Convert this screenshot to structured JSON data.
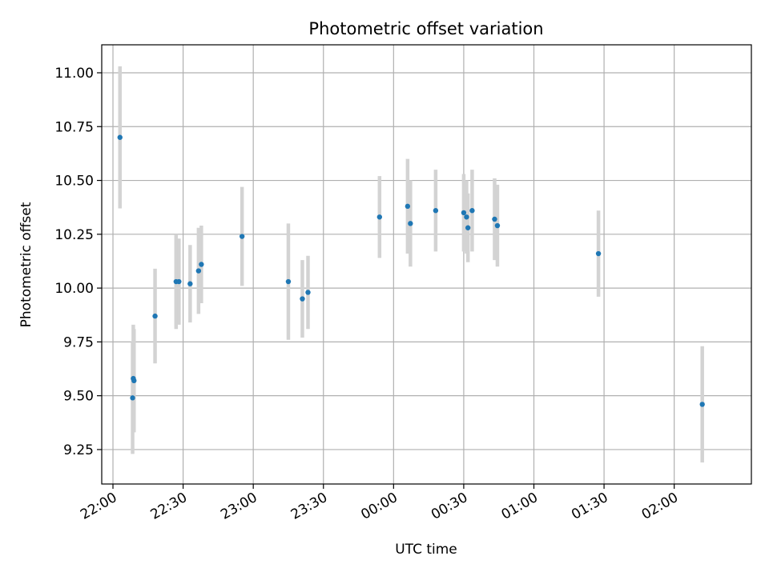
{
  "chart_data": {
    "type": "scatter",
    "title": "Photometric offset variation",
    "xlabel": "UTC time",
    "ylabel": "Photometric offset",
    "x_unit": "UTC time of day (hours after midnight of first date; values >= 24 are next day)",
    "xlim": [
      21.92,
      26.55
    ],
    "ylim": [
      9.09,
      11.13
    ],
    "grid": true,
    "x_ticks": [
      {
        "value": 22.0,
        "label": "22:00"
      },
      {
        "value": 22.5,
        "label": "22:30"
      },
      {
        "value": 23.0,
        "label": "23:00"
      },
      {
        "value": 23.5,
        "label": "23:30"
      },
      {
        "value": 24.0,
        "label": "00:00"
      },
      {
        "value": 24.5,
        "label": "00:30"
      },
      {
        "value": 25.0,
        "label": "01:00"
      },
      {
        "value": 25.5,
        "label": "01:30"
      },
      {
        "value": 26.0,
        "label": "02:00"
      }
    ],
    "y_ticks": [
      {
        "value": 9.25,
        "label": "9.25"
      },
      {
        "value": 9.5,
        "label": "9.50"
      },
      {
        "value": 9.75,
        "label": "9.75"
      },
      {
        "value": 10.0,
        "label": "10.00"
      },
      {
        "value": 10.25,
        "label": "10.25"
      },
      {
        "value": 10.5,
        "label": "10.50"
      },
      {
        "value": 10.75,
        "label": "10.75"
      },
      {
        "value": 11.0,
        "label": "11.00"
      }
    ],
    "series": [
      {
        "marker_color": "#1f77b4",
        "errorbar_color": "#d3d3d3",
        "points": [
          {
            "x": 22.05,
            "y": 10.7,
            "yerr": 0.33
          },
          {
            "x": 22.14,
            "y": 9.49,
            "yerr": 0.26
          },
          {
            "x": 22.145,
            "y": 9.58,
            "yerr": 0.25
          },
          {
            "x": 22.15,
            "y": 9.57,
            "yerr": 0.24
          },
          {
            "x": 22.3,
            "y": 9.87,
            "yerr": 0.22
          },
          {
            "x": 22.45,
            "y": 10.03,
            "yerr": 0.22
          },
          {
            "x": 22.47,
            "y": 10.03,
            "yerr": 0.2
          },
          {
            "x": 22.55,
            "y": 10.02,
            "yerr": 0.18
          },
          {
            "x": 22.61,
            "y": 10.08,
            "yerr": 0.2
          },
          {
            "x": 22.63,
            "y": 10.11,
            "yerr": 0.18
          },
          {
            "x": 22.92,
            "y": 10.24,
            "yerr": 0.23
          },
          {
            "x": 23.25,
            "y": 10.03,
            "yerr": 0.27
          },
          {
            "x": 23.35,
            "y": 9.95,
            "yerr": 0.18
          },
          {
            "x": 23.39,
            "y": 9.98,
            "yerr": 0.17
          },
          {
            "x": 23.9,
            "y": 10.33,
            "yerr": 0.19
          },
          {
            "x": 24.1,
            "y": 10.38,
            "yerr": 0.22
          },
          {
            "x": 24.12,
            "y": 10.3,
            "yerr": 0.2
          },
          {
            "x": 24.3,
            "y": 10.36,
            "yerr": 0.19
          },
          {
            "x": 24.5,
            "y": 10.35,
            "yerr": 0.18
          },
          {
            "x": 24.52,
            "y": 10.33,
            "yerr": 0.17
          },
          {
            "x": 24.53,
            "y": 10.28,
            "yerr": 0.16
          },
          {
            "x": 24.56,
            "y": 10.36,
            "yerr": 0.19
          },
          {
            "x": 24.72,
            "y": 10.32,
            "yerr": 0.19
          },
          {
            "x": 24.74,
            "y": 10.29,
            "yerr": 0.19
          },
          {
            "x": 25.46,
            "y": 10.16,
            "yerr": 0.2
          },
          {
            "x": 26.2,
            "y": 9.46,
            "yerr": 0.27
          }
        ]
      }
    ]
  }
}
